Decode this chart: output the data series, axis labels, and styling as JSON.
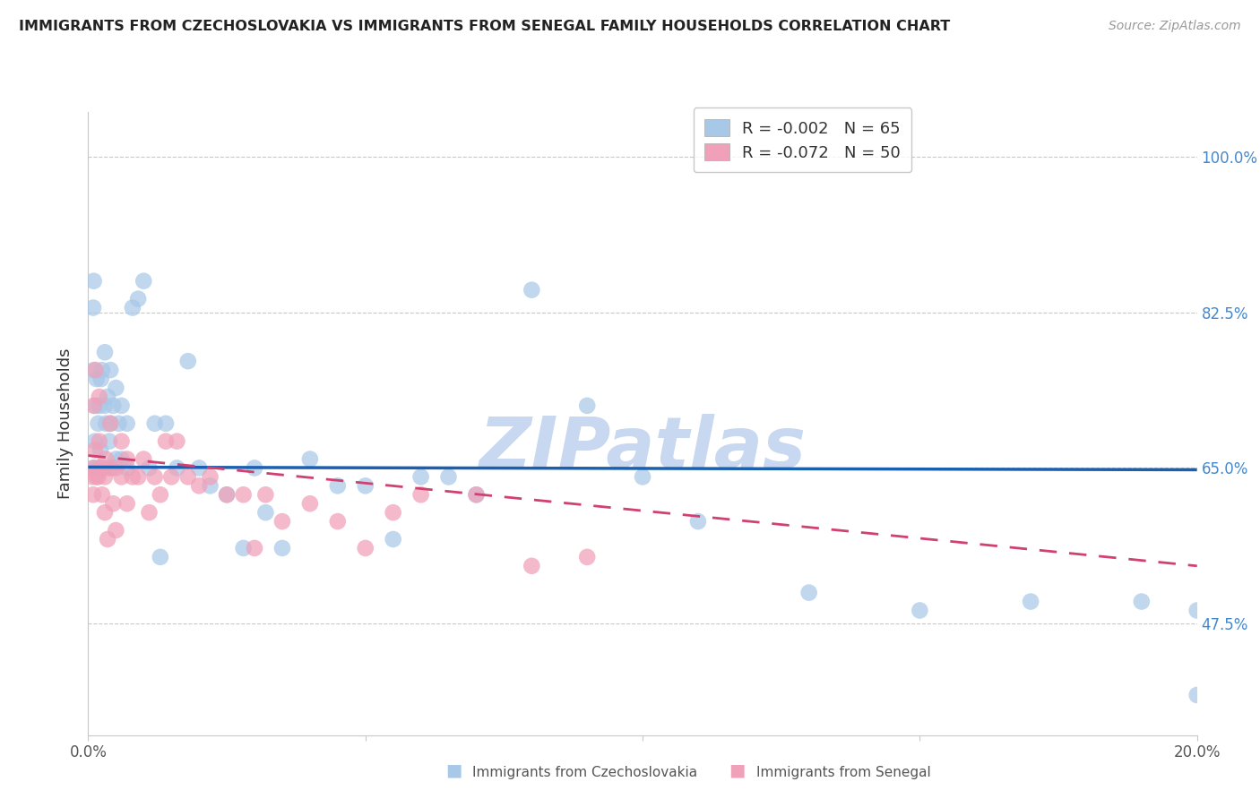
{
  "title": "IMMIGRANTS FROM CZECHOSLOVAKIA VS IMMIGRANTS FROM SENEGAL FAMILY HOUSEHOLDS CORRELATION CHART",
  "source": "Source: ZipAtlas.com",
  "ylabel_label": "Family Households",
  "xlim": [
    0.0,
    0.2
  ],
  "ylim": [
    0.35,
    1.05
  ],
  "ytick_vals": [
    0.475,
    0.65,
    0.825,
    1.0
  ],
  "ytick_labels": [
    "47.5%",
    "65.0%",
    "82.5%",
    "100.0%"
  ],
  "xtick_vals": [
    0.0,
    0.05,
    0.1,
    0.15,
    0.2
  ],
  "xtick_labels": [
    "0.0%",
    "",
    "",
    "",
    "20.0%"
  ],
  "bg": "#ffffff",
  "grid_color": "#c8c8c8",
  "blue_dot": "#a8c8e8",
  "pink_dot": "#f0a0b8",
  "blue_line": "#1a5fb0",
  "pink_line": "#d04070",
  "wm_color": "#c8d8f0",
  "r_blue": "-0.002",
  "n_blue": "65",
  "r_pink": "-0.072",
  "n_pink": "50",
  "label_blue": "Immigrants from Czechoslovakia",
  "label_pink": "Immigrants from Senegal",
  "bx": [
    0.0008,
    0.0009,
    0.001,
    0.001,
    0.0012,
    0.0013,
    0.0015,
    0.0015,
    0.0018,
    0.002,
    0.002,
    0.0022,
    0.0023,
    0.0025,
    0.0025,
    0.003,
    0.003,
    0.003,
    0.0032,
    0.0035,
    0.0038,
    0.004,
    0.004,
    0.0042,
    0.0045,
    0.005,
    0.005,
    0.0055,
    0.006,
    0.006,
    0.007,
    0.007,
    0.008,
    0.009,
    0.01,
    0.011,
    0.012,
    0.013,
    0.014,
    0.016,
    0.018,
    0.02,
    0.022,
    0.025,
    0.028,
    0.03,
    0.032,
    0.035,
    0.04,
    0.045,
    0.05,
    0.055,
    0.06,
    0.065,
    0.07,
    0.08,
    0.09,
    0.1,
    0.11,
    0.13,
    0.15,
    0.17,
    0.19,
    0.2,
    0.2
  ],
  "by": [
    0.65,
    0.83,
    0.86,
    0.76,
    0.68,
    0.72,
    0.75,
    0.65,
    0.7,
    0.72,
    0.65,
    0.67,
    0.75,
    0.76,
    0.65,
    0.78,
    0.72,
    0.65,
    0.7,
    0.73,
    0.68,
    0.76,
    0.7,
    0.65,
    0.72,
    0.74,
    0.66,
    0.7,
    0.72,
    0.66,
    0.7,
    0.65,
    0.83,
    0.84,
    0.86,
    0.65,
    0.7,
    0.55,
    0.7,
    0.65,
    0.77,
    0.65,
    0.63,
    0.62,
    0.56,
    0.65,
    0.6,
    0.56,
    0.66,
    0.63,
    0.63,
    0.57,
    0.64,
    0.64,
    0.62,
    0.85,
    0.72,
    0.64,
    0.59,
    0.51,
    0.49,
    0.5,
    0.5,
    0.49,
    0.395
  ],
  "px": [
    0.0008,
    0.0009,
    0.001,
    0.001,
    0.0012,
    0.0013,
    0.0015,
    0.0018,
    0.002,
    0.002,
    0.0022,
    0.0025,
    0.003,
    0.003,
    0.0032,
    0.0035,
    0.004,
    0.004,
    0.0045,
    0.005,
    0.005,
    0.006,
    0.006,
    0.007,
    0.007,
    0.008,
    0.009,
    0.01,
    0.011,
    0.012,
    0.013,
    0.014,
    0.015,
    0.016,
    0.018,
    0.02,
    0.022,
    0.025,
    0.028,
    0.03,
    0.032,
    0.035,
    0.04,
    0.045,
    0.05,
    0.055,
    0.06,
    0.07,
    0.08,
    0.09
  ],
  "py": [
    0.64,
    0.62,
    0.72,
    0.65,
    0.67,
    0.76,
    0.64,
    0.64,
    0.68,
    0.73,
    0.65,
    0.62,
    0.64,
    0.6,
    0.66,
    0.57,
    0.7,
    0.65,
    0.61,
    0.65,
    0.58,
    0.68,
    0.64,
    0.66,
    0.61,
    0.64,
    0.64,
    0.66,
    0.6,
    0.64,
    0.62,
    0.68,
    0.64,
    0.68,
    0.64,
    0.63,
    0.64,
    0.62,
    0.62,
    0.56,
    0.62,
    0.59,
    0.61,
    0.59,
    0.56,
    0.6,
    0.62,
    0.62,
    0.54,
    0.55
  ],
  "blue_line_x": [
    0.0,
    0.2
  ],
  "blue_line_y": [
    0.651,
    0.648
  ],
  "pink_line_x": [
    0.0,
    0.2
  ],
  "pink_line_y": [
    0.664,
    0.54
  ]
}
